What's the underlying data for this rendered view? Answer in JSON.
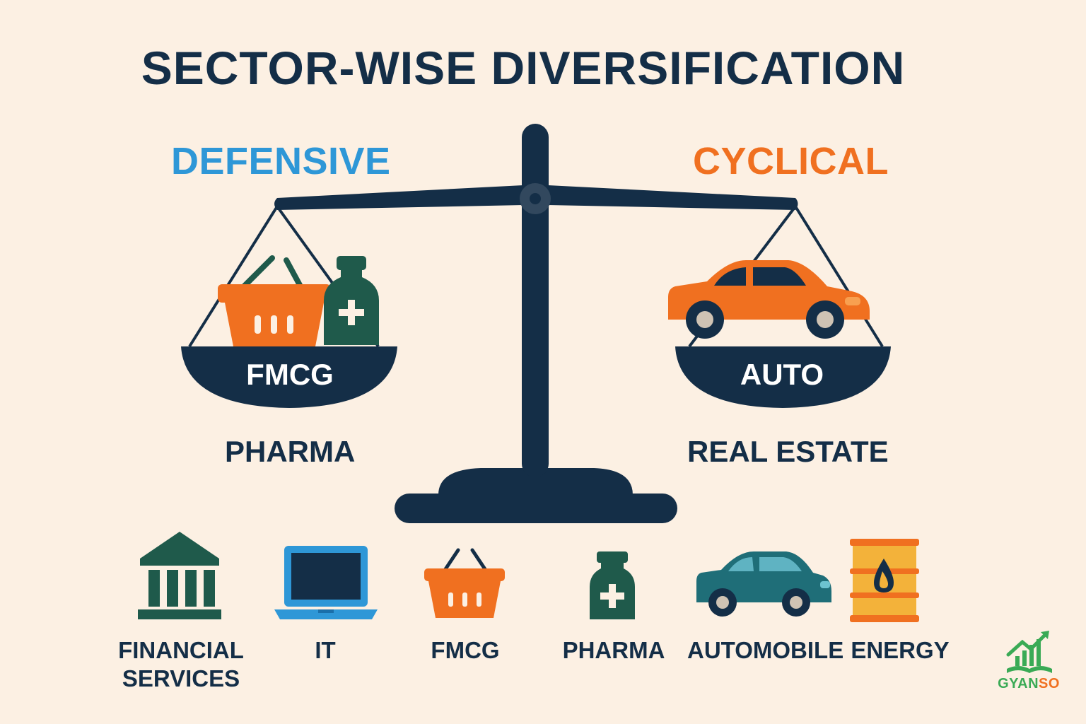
{
  "title": "SECTOR-WISE DIVERSIFICATION",
  "scale": {
    "left": {
      "heading": "DEFENSIVE",
      "heading_color": "#2E97D7",
      "pan_label": "FMCG",
      "below_label": "PHARMA",
      "items": [
        "basket-icon",
        "medicine-bottle-icon"
      ]
    },
    "right": {
      "heading": "CYCLICAL",
      "heading_color": "#F07020",
      "pan_label": "AUTO",
      "below_label": "REAL ESTATE",
      "items": [
        "car-icon"
      ]
    }
  },
  "sectors": [
    {
      "label": "FINANCIAL SERVICES",
      "line1": "FINANCIAL",
      "line2": "SERVICES",
      "icon": "bank-icon"
    },
    {
      "label": "IT",
      "icon": "laptop-icon"
    },
    {
      "label": "FMCG",
      "icon": "basket-icon"
    },
    {
      "label": "PHARMA",
      "icon": "medicine-bottle-icon"
    },
    {
      "label": "AUTOMOBILE",
      "icon": "car-icon"
    },
    {
      "label": "ENERGY",
      "icon": "oil-barrel-icon"
    }
  ],
  "logo": {
    "text_part1": "GYAN",
    "text_part2": "SO",
    "icon": "growth-chart-book-icon"
  },
  "colors": {
    "background": "#FCF0E3",
    "navy": "#142E47",
    "orange": "#F07020",
    "blue": "#2E97D7",
    "green": "#1F5A4B",
    "teal": "#1F6E78"
  }
}
